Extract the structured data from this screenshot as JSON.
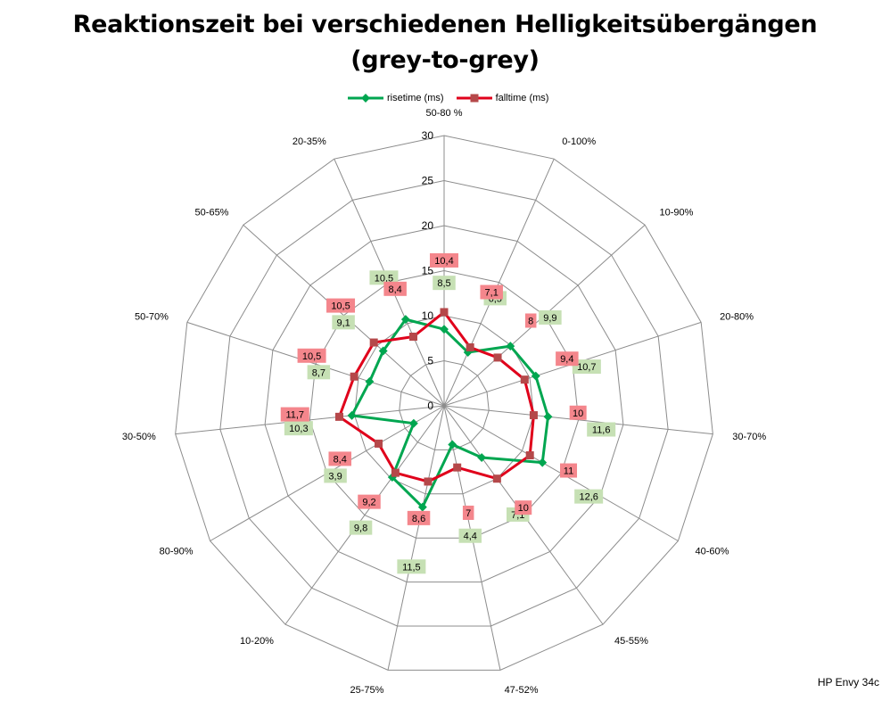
{
  "title_line1": "Reaktionszeit bei verschiedenen Helligkeitsübergängen",
  "title_line2": "(grey-to-grey)",
  "watermark": "HP Envy 34c",
  "legend": {
    "rise": "risetime (ms)",
    "fall": "falltime (ms)"
  },
  "chart_data": {
    "type": "radar",
    "categories": [
      "50-80 %",
      "0-100%",
      "10-90%",
      "20-80%",
      "30-70%",
      "40-60%",
      "45-55%",
      "47-52%",
      "25-75%",
      "10-20%",
      "80-90%",
      "30-50%",
      "50-70%",
      "50-65%",
      "20-35%"
    ],
    "rlim": [
      0,
      30
    ],
    "ticks": [
      0,
      5,
      10,
      15,
      20,
      25,
      30
    ],
    "ticks_text": [
      "0",
      "5",
      "10",
      "15",
      "20",
      "25",
      "30"
    ],
    "series": [
      {
        "name": "risetime (ms)",
        "color": "#00a650",
        "label_bg": "#c6e0b4",
        "values": [
          8.5,
          6.5,
          9.9,
          10.7,
          11.6,
          12.6,
          7.1,
          4.4,
          11.5,
          9.8,
          3.9,
          10.3,
          8.7,
          9.1,
          10.5
        ],
        "labels": [
          "8,5",
          "6,5",
          "9,9",
          "10,7",
          "11,6",
          "12,6",
          "7,1",
          "4,4",
          "11,5",
          "9,8",
          "3,9",
          "10,3",
          "8,7",
          "9,1",
          "10,5"
        ]
      },
      {
        "name": "falltime (ms)",
        "color": "#e0001b",
        "label_bg": "#f4868c",
        "values": [
          10.4,
          7.1,
          8,
          9.4,
          10,
          11,
          10,
          7,
          8.6,
          9.2,
          8.4,
          11.7,
          10.5,
          10.5,
          8.4
        ],
        "labels": [
          "10,4",
          "7,1",
          "8",
          "9,4",
          "10",
          "11",
          "10",
          "7",
          "8,6",
          "9,2",
          "8,4",
          "11,7",
          "10,5",
          "10,5",
          "8,4"
        ]
      }
    ],
    "grid": true,
    "legend_position": "top"
  }
}
